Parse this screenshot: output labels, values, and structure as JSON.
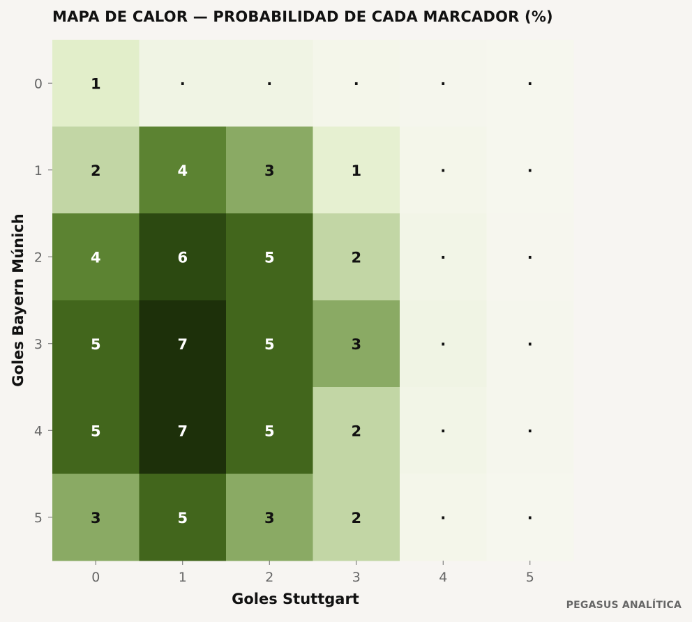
{
  "chart_data": {
    "type": "heatmap",
    "title": "MAPA DE CALOR — PROBABILIDAD DE CADA MARCADOR (%)",
    "xlabel": "Goles Stuttgart",
    "ylabel": "Goles Bayern Múnich",
    "x_categories": [
      "0",
      "1",
      "2",
      "3",
      "4",
      "5"
    ],
    "y_categories": [
      "0",
      "1",
      "2",
      "3",
      "4",
      "5"
    ],
    "values": [
      [
        1.2,
        0.4,
        0.4,
        0.2,
        0.1,
        0.05
      ],
      [
        2,
        4,
        3,
        1,
        0.2,
        0.05
      ],
      [
        4,
        6,
        5,
        2,
        0.3,
        0.08
      ],
      [
        5,
        7,
        5,
        3,
        0.4,
        0.1
      ],
      [
        5,
        7,
        5,
        2,
        0.3,
        0.1
      ],
      [
        3,
        5,
        3,
        2,
        0.2,
        0.05
      ]
    ],
    "cell_labels": [
      [
        "1",
        "·",
        "·",
        "·",
        "·",
        "·"
      ],
      [
        "2",
        "4",
        "3",
        "1",
        "·",
        "·"
      ],
      [
        "4",
        "6",
        "5",
        "2",
        "·",
        "·"
      ],
      [
        "5",
        "7",
        "5",
        "3",
        "·",
        "·"
      ],
      [
        "5",
        "7",
        "5",
        "2",
        "·",
        "·"
      ],
      [
        "3",
        "5",
        "3",
        "2",
        "·",
        "·"
      ]
    ],
    "colormap": [
      "#f7f7f0",
      "#e3efcc",
      "#b5cc95",
      "#6a9140",
      "#4a7020",
      "#2f4d12",
      "#1d300a"
    ],
    "grid": false,
    "legend": "none"
  },
  "source": "PEGASUS ANALÍTICA"
}
